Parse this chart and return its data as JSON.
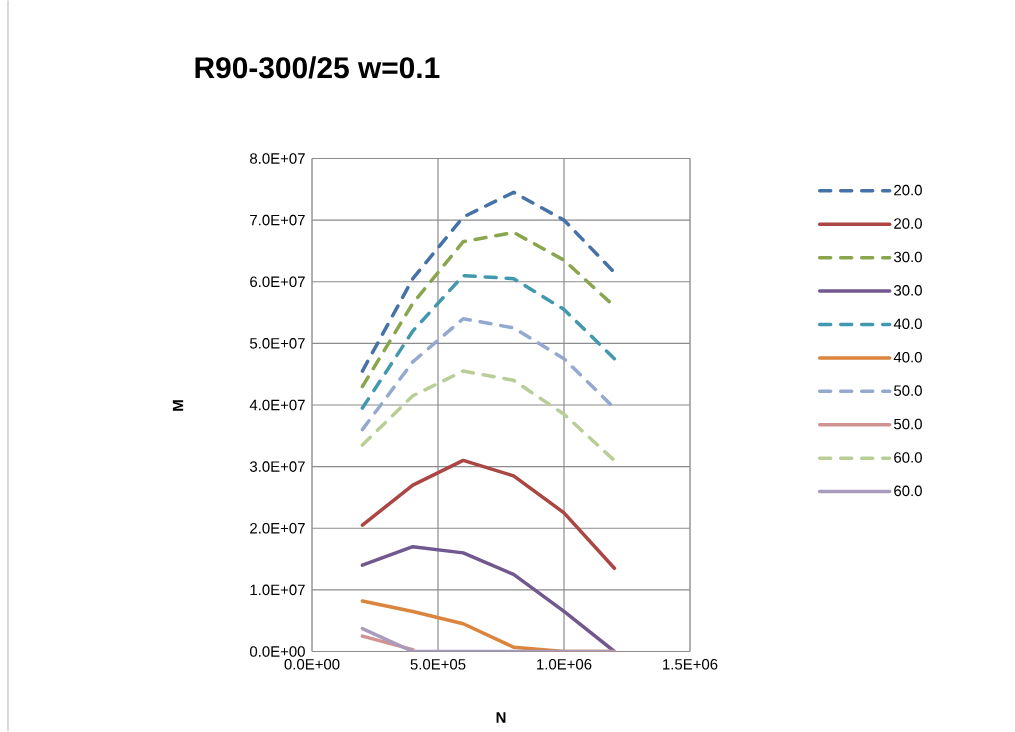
{
  "chart_data": {
    "type": "line",
    "title": "R90-300/25  w=0.1",
    "xlabel": "N",
    "ylabel": "M",
    "x": [
      200000,
      400000,
      600000,
      800000,
      1000000,
      1200000
    ],
    "xlim": [
      0,
      1500000
    ],
    "ylim": [
      0,
      80000000
    ],
    "xticks": [
      {
        "value": 0,
        "label": "0.0E+00"
      },
      {
        "value": 500000,
        "label": "5.0E+05"
      },
      {
        "value": 1000000,
        "label": "1.0E+06"
      },
      {
        "value": 1500000,
        "label": "1.5E+06"
      }
    ],
    "yticks": [
      {
        "value": 0,
        "label": "0.0E+00"
      },
      {
        "value": 10000000,
        "label": "1.0E+07"
      },
      {
        "value": 20000000,
        "label": "2.0E+07"
      },
      {
        "value": 30000000,
        "label": "3.0E+07"
      },
      {
        "value": 40000000,
        "label": "4.0E+07"
      },
      {
        "value": 50000000,
        "label": "5.0E+07"
      },
      {
        "value": 60000000,
        "label": "6.0E+07"
      },
      {
        "value": 70000000,
        "label": "7.0E+07"
      },
      {
        "value": 80000000,
        "label": "8.0E+07"
      }
    ],
    "grid": true,
    "legend": "right",
    "marker": "none",
    "series": [
      {
        "name": "20.0",
        "color": "#4572a7",
        "line_style": "dashed",
        "values": [
          45500000,
          60500000,
          70500000,
          74500000,
          70000000,
          61500000
        ]
      },
      {
        "name": "20.0",
        "color": "#aa4643",
        "line_style": "solid",
        "values": [
          20500000,
          27000000,
          31000000,
          28500000,
          22500000,
          13500000
        ]
      },
      {
        "name": "30.0",
        "color": "#89a54e",
        "line_style": "dashed",
        "values": [
          43000000,
          56500000,
          66500000,
          68000000,
          63500000,
          56000000
        ]
      },
      {
        "name": "30.0",
        "color": "#71588f",
        "line_style": "solid",
        "values": [
          14000000,
          17000000,
          16000000,
          12500000,
          6500000,
          0
        ]
      },
      {
        "name": "40.0",
        "color": "#4198af",
        "line_style": "dashed",
        "values": [
          39500000,
          52000000,
          61000000,
          60500000,
          55500000,
          47500000
        ]
      },
      {
        "name": "40.0",
        "color": "#db843d",
        "line_style": "solid",
        "values": [
          8200000,
          6500000,
          4500000,
          700000,
          0,
          0
        ]
      },
      {
        "name": "50.0",
        "color": "#93a9cf",
        "line_style": "dashed",
        "values": [
          36000000,
          47000000,
          54000000,
          52500000,
          47500000,
          39500000
        ]
      },
      {
        "name": "50.0",
        "color": "#d19392",
        "line_style": "solid",
        "values": [
          2500000,
          300000,
          null,
          null,
          null,
          null
        ]
      },
      {
        "name": "60.0",
        "color": "#b9cd96",
        "line_style": "dashed",
        "values": [
          33500000,
          41500000,
          45500000,
          44000000,
          38500000,
          31000000
        ]
      },
      {
        "name": "60.0",
        "color": "#a99bbd",
        "line_style": "solid",
        "values": [
          3700000,
          0,
          0,
          0,
          0,
          0
        ]
      }
    ]
  }
}
